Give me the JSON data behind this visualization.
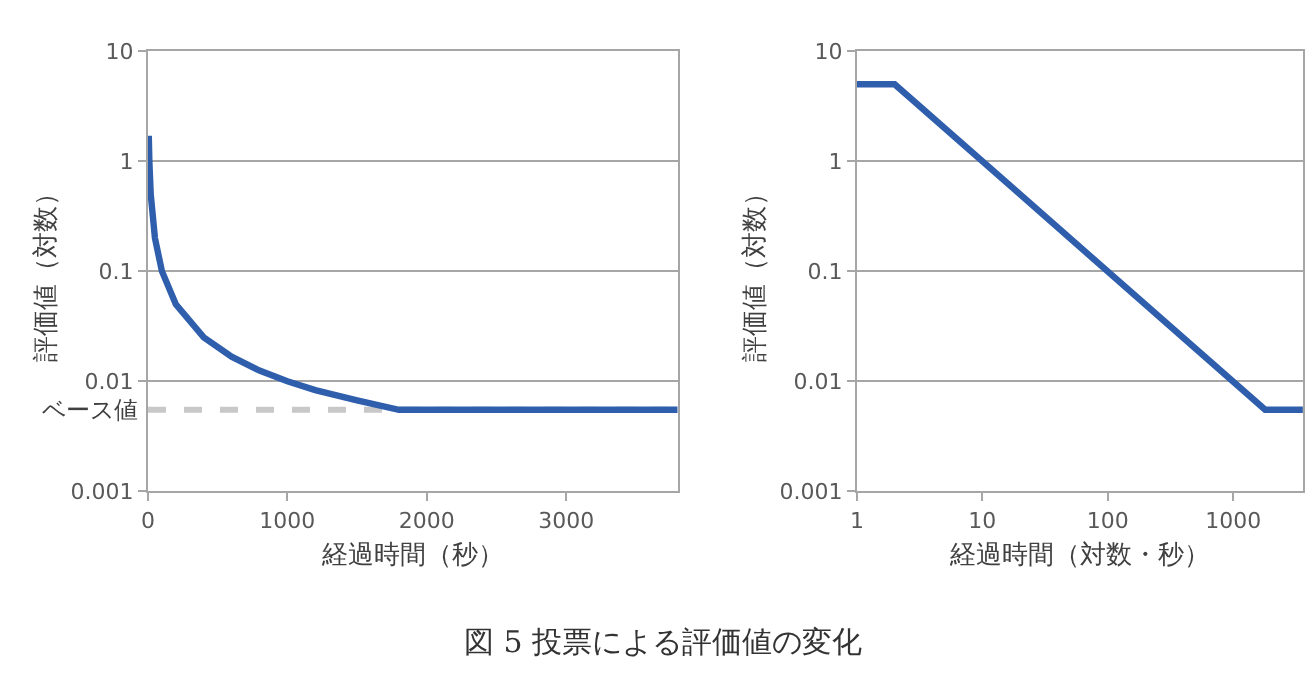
{
  "chart_data": [
    {
      "type": "line",
      "xlabel": "経過時間（秒）",
      "ylabel": "評価値（対数）",
      "log": "y",
      "xlim": [
        0,
        3800
      ],
      "xticks": [
        0,
        1000,
        2000,
        3000
      ],
      "ylim": [
        0.001,
        10
      ],
      "yticks": [
        0.001,
        0.01,
        0.1,
        1,
        10
      ],
      "grid": "y",
      "color": "#2f5fac",
      "line_style": "solid",
      "x": [
        6,
        10,
        20,
        50,
        100,
        200,
        400,
        600,
        800,
        1000,
        1200,
        1500,
        1800,
        3800
      ],
      "values": [
        1.7,
        1,
        0.5,
        0.2,
        0.1,
        0.05,
        0.025,
        0.0167,
        0.0125,
        0.01,
        0.0083,
        0.0067,
        0.0055,
        0.0055
      ],
      "ref_lines": [
        {
          "axis": "y",
          "value": 0.0055,
          "label": "ベース値",
          "color": "#c8c8c8",
          "line_style": "dashed"
        }
      ],
      "annotations": [
        "図 5 投票による評価値の変化"
      ]
    },
    {
      "type": "line",
      "xlabel": "経過時間（対数・秒）",
      "ylabel": "評価値（対数）",
      "log": "xy",
      "xlim": [
        1,
        3600
      ],
      "xticks": [
        1,
        10,
        100,
        1000
      ],
      "ylim": [
        0.001,
        10
      ],
      "yticks": [
        0.001,
        0.01,
        0.1,
        1,
        10
      ],
      "grid": "y",
      "color": "#2f5fac",
      "line_style": "solid",
      "x": [
        1,
        2,
        1800,
        3600
      ],
      "values": [
        5,
        5,
        0.0055,
        0.0055
      ]
    }
  ]
}
